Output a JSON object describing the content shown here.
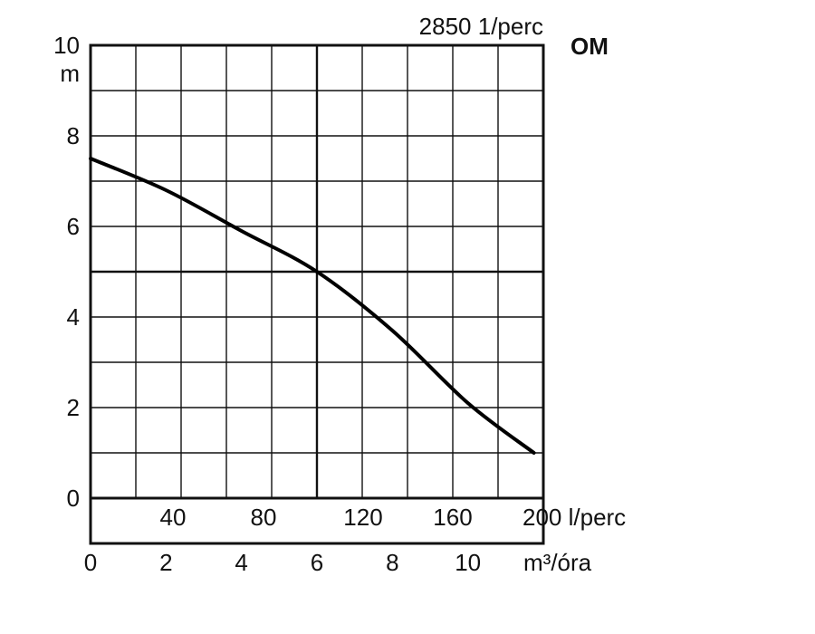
{
  "chart_data": {
    "type": "line",
    "model": "OM",
    "speed_label": "2850 1/perc",
    "y_unit": "m",
    "y_ticks": [
      "0",
      "2",
      "4",
      "6",
      "8",
      "10"
    ],
    "ylim": [
      0,
      10
    ],
    "x_flow_lpm_ticks": [
      "40",
      "80",
      "120",
      "160"
    ],
    "x_flow_lpm_last": "200 l/perc",
    "x_flow_m3h_ticks": [
      "0",
      "2",
      "4",
      "6",
      "8",
      "10"
    ],
    "x_flow_m3h_unit": "m³/óra",
    "xlim_m3h": [
      0,
      12
    ],
    "grid": true,
    "series": [
      {
        "color": "#000000",
        "x": [
          0,
          2,
          4,
          6,
          8,
          10,
          11.75
        ],
        "y": [
          7.5,
          6.8,
          5.9,
          5.0,
          3.7,
          2.1,
          1.0
        ]
      }
    ]
  }
}
